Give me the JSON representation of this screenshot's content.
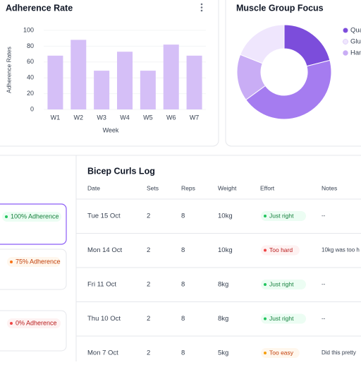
{
  "chart_data": [
    {
      "type": "bar",
      "title": "Adherence Rate",
      "x_label": "Week",
      "y_label": "Adherence Rates",
      "categories": [
        "W1",
        "W2",
        "W3",
        "W4",
        "W5",
        "W6",
        "W7"
      ],
      "values": [
        68,
        88,
        49,
        73,
        49,
        82,
        68
      ],
      "color": "#d5bff7",
      "ylim": [
        0,
        100
      ],
      "yticks": [
        0,
        20,
        40,
        60,
        80,
        100
      ],
      "grid": true
    },
    {
      "type": "pie",
      "title": "Muscle Group Focus",
      "values": [
        21,
        44,
        16,
        19
      ],
      "colors": [
        "#7c4ddb",
        "#a57cf0",
        "#c9adf5",
        "#efe6fd"
      ],
      "legend": [
        {
          "label": "Qua",
          "color": "#7c4ddb"
        },
        {
          "label": "Glu",
          "color": "#efe6fd"
        },
        {
          "label": "Ham",
          "color": "#c9adf5"
        }
      ]
    }
  ],
  "adherence_cards": [
    "100% Adherence",
    "75% Adherence",
    "0% Adherence"
  ],
  "log": {
    "title": "Bicep Curls Log",
    "columns": [
      "Date",
      "Sets",
      "Reps",
      "Weight",
      "Effort",
      "Notes"
    ],
    "rows": [
      [
        "Tue 15 Oct",
        "2",
        "8",
        "10kg",
        "Just right",
        "--"
      ],
      [
        "Mon 14 Oct",
        "2",
        "8",
        "10kg",
        "Too hard",
        "10kg was too h"
      ],
      [
        "Fri 11 Oct",
        "2",
        "8",
        "8kg",
        "Just right",
        "--"
      ],
      [
        "Thu 10 Oct",
        "2",
        "8",
        "8kg",
        "Just right",
        "--"
      ],
      [
        "Mon 7 Oct",
        "2",
        "8",
        "5kg",
        "Too easy",
        "Did this pretty"
      ]
    ]
  }
}
